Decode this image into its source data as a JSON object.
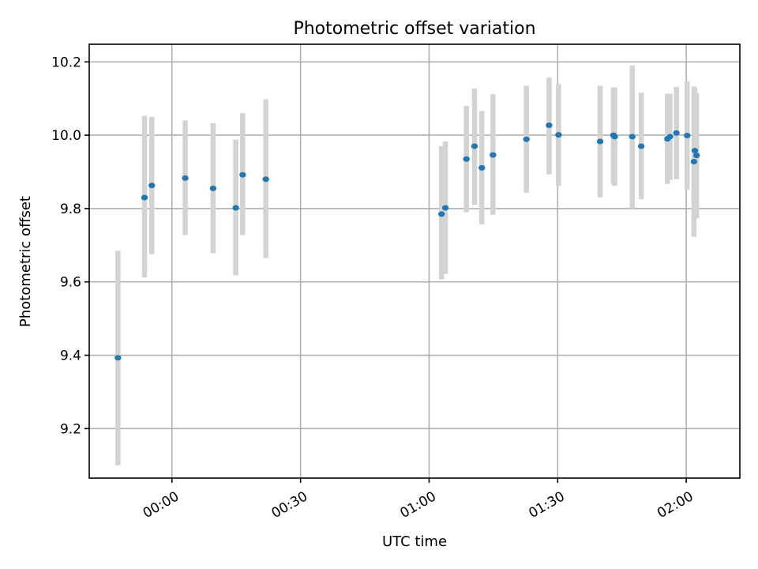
{
  "chart_data": {
    "type": "scatter",
    "title": "Photometric offset variation",
    "xlabel": "UTC time",
    "ylabel": "Photometric offset",
    "grid": true,
    "x_axis": {
      "unit": "minutes relative to 00:00 UTC",
      "range": [
        -19.3,
        132.5
      ],
      "ticks": [
        {
          "value": 0,
          "label": "00:00"
        },
        {
          "value": 30,
          "label": "00:30"
        },
        {
          "value": 60,
          "label": "01:00"
        },
        {
          "value": 90,
          "label": "01:30"
        },
        {
          "value": 120,
          "label": "02:00"
        }
      ]
    },
    "y_axis": {
      "range": [
        9.065,
        10.248
      ],
      "ticks": [
        {
          "value": 9.2,
          "label": "9.2"
        },
        {
          "value": 9.4,
          "label": "9.4"
        },
        {
          "value": 9.6,
          "label": "9.6"
        },
        {
          "value": 9.8,
          "label": "9.8"
        },
        {
          "value": 10.0,
          "label": "10.0"
        },
        {
          "value": 10.2,
          "label": "10.2"
        }
      ]
    },
    "series": [
      {
        "color": "#1f77b4",
        "error_color": "#d3d3d3",
        "points": [
          {
            "x": -12.6,
            "y": 9.393,
            "ylow": 9.1,
            "yhigh": 9.685
          },
          {
            "x": -6.4,
            "y": 9.83,
            "ylow": 9.612,
            "yhigh": 10.053
          },
          {
            "x": -4.7,
            "y": 9.863,
            "ylow": 9.675,
            "yhigh": 10.05
          },
          {
            "x": 3.1,
            "y": 9.883,
            "ylow": 9.728,
            "yhigh": 10.04
          },
          {
            "x": 9.6,
            "y": 9.855,
            "ylow": 9.678,
            "yhigh": 10.033
          },
          {
            "x": 14.9,
            "y": 9.802,
            "ylow": 9.618,
            "yhigh": 9.988
          },
          {
            "x": 16.5,
            "y": 9.892,
            "ylow": 9.728,
            "yhigh": 10.06
          },
          {
            "x": 21.9,
            "y": 9.88,
            "ylow": 9.665,
            "yhigh": 10.098
          },
          {
            "x": 62.9,
            "y": 9.785,
            "ylow": 9.607,
            "yhigh": 9.97
          },
          {
            "x": 63.8,
            "y": 9.802,
            "ylow": 9.622,
            "yhigh": 9.983
          },
          {
            "x": 68.7,
            "y": 9.935,
            "ylow": 9.79,
            "yhigh": 10.08
          },
          {
            "x": 70.6,
            "y": 9.97,
            "ylow": 9.81,
            "yhigh": 10.128
          },
          {
            "x": 72.3,
            "y": 9.911,
            "ylow": 9.757,
            "yhigh": 10.066
          },
          {
            "x": 74.9,
            "y": 9.946,
            "ylow": 9.783,
            "yhigh": 10.112
          },
          {
            "x": 82.7,
            "y": 9.989,
            "ylow": 9.843,
            "yhigh": 10.135
          },
          {
            "x": 88.0,
            "y": 10.027,
            "ylow": 9.893,
            "yhigh": 10.157
          },
          {
            "x": 90.2,
            "y": 10.001,
            "ylow": 9.862,
            "yhigh": 10.14
          },
          {
            "x": 99.9,
            "y": 9.983,
            "ylow": 9.83,
            "yhigh": 10.135
          },
          {
            "x": 103.0,
            "y": 10.0,
            "ylow": 9.867,
            "yhigh": 10.13
          },
          {
            "x": 103.3,
            "y": 9.996,
            "ylow": 9.862,
            "yhigh": 10.13
          },
          {
            "x": 107.4,
            "y": 9.996,
            "ylow": 9.8,
            "yhigh": 10.19
          },
          {
            "x": 109.5,
            "y": 9.97,
            "ylow": 9.825,
            "yhigh": 10.116
          },
          {
            "x": 115.6,
            "y": 9.99,
            "ylow": 9.867,
            "yhigh": 10.113
          },
          {
            "x": 116.2,
            "y": 9.996,
            "ylow": 9.878,
            "yhigh": 10.113
          },
          {
            "x": 117.7,
            "y": 10.006,
            "ylow": 9.88,
            "yhigh": 10.132
          },
          {
            "x": 120.2,
            "y": 9.999,
            "ylow": 9.852,
            "yhigh": 10.147
          },
          {
            "x": 121.8,
            "y": 9.928,
            "ylow": 9.723,
            "yhigh": 10.133
          },
          {
            "x": 122.0,
            "y": 9.958,
            "ylow": 9.788,
            "yhigh": 10.128
          },
          {
            "x": 122.4,
            "y": 9.945,
            "ylow": 9.773,
            "yhigh": 10.115
          }
        ]
      }
    ]
  }
}
